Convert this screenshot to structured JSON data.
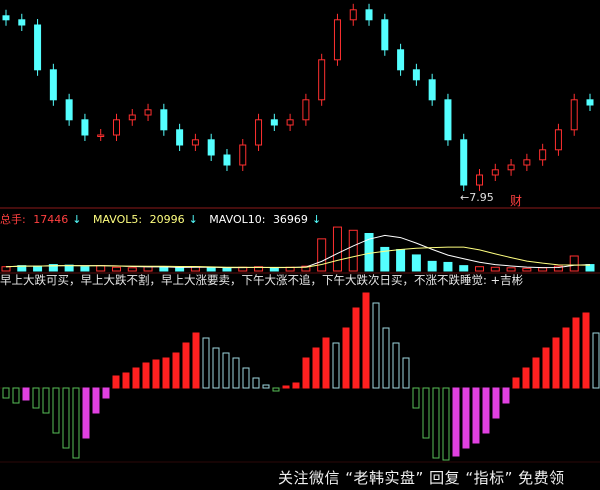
{
  "chart_data": [
    {
      "type": "candlestick",
      "panel": "price",
      "closes": [
        12.08,
        11.95,
        10.83,
        10.08,
        9.58,
        9.2,
        9.2,
        9.58,
        9.7,
        9.83,
        9.33,
        8.95,
        9.08,
        8.7,
        8.45,
        8.95,
        9.58,
        9.45,
        9.58,
        10.08,
        11.08,
        12.08,
        12.33,
        12.08,
        11.33,
        10.83,
        10.58,
        10.08,
        9.08,
        7.95,
        8.2,
        8.33,
        8.45,
        8.58,
        8.83,
        9.33,
        10.08,
        9.95
      ],
      "low_annotation": "7.95",
      "marker_label": "财"
    },
    {
      "type": "bar",
      "panel": "volume",
      "legend": {
        "total_label": "总手:",
        "total_value": "17446",
        "mavol5_label": "MAVOL5:",
        "mavol5_value": "20996",
        "mavol10_label": "MAVOL10:",
        "mavol10_value": "36969"
      },
      "values": [
        4000,
        5000,
        4500,
        6000,
        5500,
        4000,
        5000,
        3500,
        3000,
        4000,
        3500,
        3000,
        4000,
        3000,
        2500,
        3500,
        4000,
        3000,
        3500,
        4500,
        30000,
        41000,
        38000,
        35000,
        22000,
        20000,
        15000,
        9000,
        8000,
        5000,
        4000,
        3500,
        3000,
        2500,
        3000,
        4500,
        14000,
        6000
      ],
      "colors": {
        "up": "#ff3030",
        "down": "#54ffff",
        "ma5": "#ffffff",
        "ma10": "#ffff80"
      }
    },
    {
      "type": "bar",
      "panel": "indicator",
      "formula": "早上大跌可买，早上大跌不割，早上大涨要卖，下午大涨不追，下午大跌次日买，不涨不跌睡觉: +吉彬",
      "values": [
        -10,
        -15,
        -12,
        -20,
        -25,
        -45,
        -60,
        -70,
        -50,
        -25,
        -10,
        12,
        15,
        20,
        25,
        28,
        30,
        35,
        45,
        55,
        50,
        40,
        35,
        30,
        20,
        10,
        3,
        -3,
        2,
        5,
        30,
        40,
        50,
        45,
        60,
        80,
        95,
        85,
        60,
        45,
        30,
        -20,
        -50,
        -70,
        -72,
        -68,
        -60,
        -55,
        -45,
        -30,
        -15,
        10,
        20,
        30,
        40,
        50,
        60,
        70,
        75,
        55
      ],
      "colors": {
        "rise_pos": "#ff2020",
        "fall_pos": "#9fd8e0",
        "fall_neg": "#58c058",
        "rise_neg": "#e040e0"
      }
    }
  ],
  "colors": {
    "background": "#000000",
    "up": "#ff3030",
    "down": "#54ffff",
    "divider": "#8b1a1a"
  },
  "watermark": "关注微信 “老韩实盘” 回复 “指标” 免费领"
}
